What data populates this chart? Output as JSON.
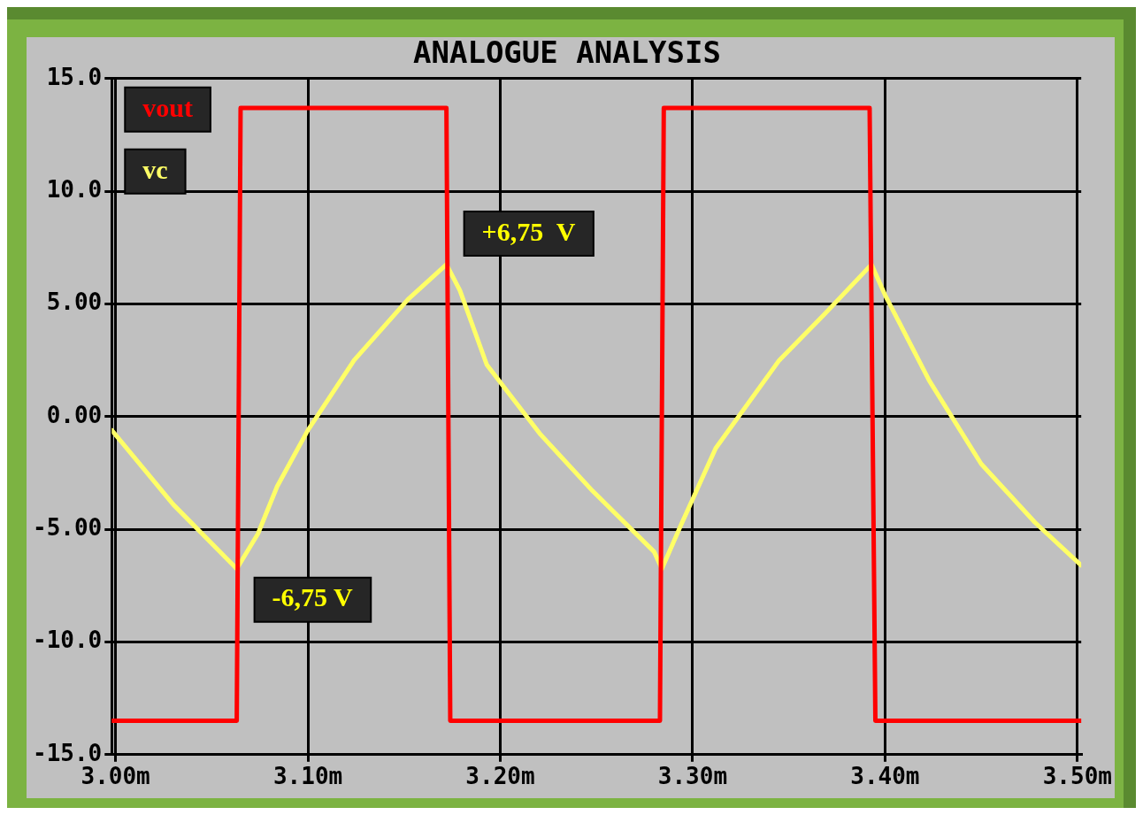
{
  "chart_data": {
    "type": "line",
    "title": "ANALOGUE ANALYSIS",
    "xlim": [
      2.998,
      3.502
    ],
    "xticks": [
      {
        "value": 3.0,
        "label": "3.00m"
      },
      {
        "value": 3.1,
        "label": "3.10m"
      },
      {
        "value": 3.2,
        "label": "3.20m"
      },
      {
        "value": 3.3,
        "label": "3.30m"
      },
      {
        "value": 3.4,
        "label": "3.40m"
      },
      {
        "value": 3.5,
        "label": "3.50m"
      }
    ],
    "ylim": [
      -15,
      15
    ],
    "yticks": [
      {
        "value": -15,
        "label": "-15.0"
      },
      {
        "value": -10,
        "label": "-10.0"
      },
      {
        "value": -5,
        "label": "-5.00"
      },
      {
        "value": 0,
        "label": "0.00"
      },
      {
        "value": 5,
        "label": "5.00"
      },
      {
        "value": 10,
        "label": "10.0"
      },
      {
        "value": 15,
        "label": "15.0"
      }
    ],
    "grid": true,
    "legend": "top left",
    "marker": "none",
    "line_style": "solid",
    "series": [
      {
        "name": "vout",
        "color": "#ff0000",
        "x": [
          2.998,
          3.063,
          3.065,
          3.172,
          3.174,
          3.283,
          3.285,
          3.392,
          3.395,
          3.502
        ],
        "values": [
          -13.5,
          -13.5,
          13.7,
          13.7,
          -13.5,
          -13.5,
          13.7,
          13.7,
          -13.5,
          -13.5
        ]
      },
      {
        "name": "vc",
        "color": "#ffff66",
        "x": [
          2.998,
          3.03,
          3.063,
          3.074,
          3.084,
          3.1,
          3.124,
          3.152,
          3.172,
          3.179,
          3.193,
          3.221,
          3.248,
          3.28,
          3.284,
          3.294,
          3.312,
          3.345,
          3.368,
          3.393,
          3.4,
          3.423,
          3.45,
          3.478,
          3.502
        ],
        "values": [
          -0.6,
          -3.9,
          -6.75,
          -5.2,
          -3.1,
          -0.6,
          2.5,
          5.2,
          6.75,
          5.6,
          2.3,
          -0.8,
          -3.3,
          -6.0,
          -6.75,
          -4.8,
          -1.4,
          2.5,
          4.5,
          6.75,
          5.4,
          1.6,
          -2.1,
          -4.7,
          -6.6
        ]
      }
    ],
    "annotations": [
      {
        "text": "+6,75  V",
        "x": 3.172,
        "y": 6.75
      },
      {
        "text": "-6,75 V",
        "x": 3.063,
        "y": -6.75
      }
    ]
  }
}
